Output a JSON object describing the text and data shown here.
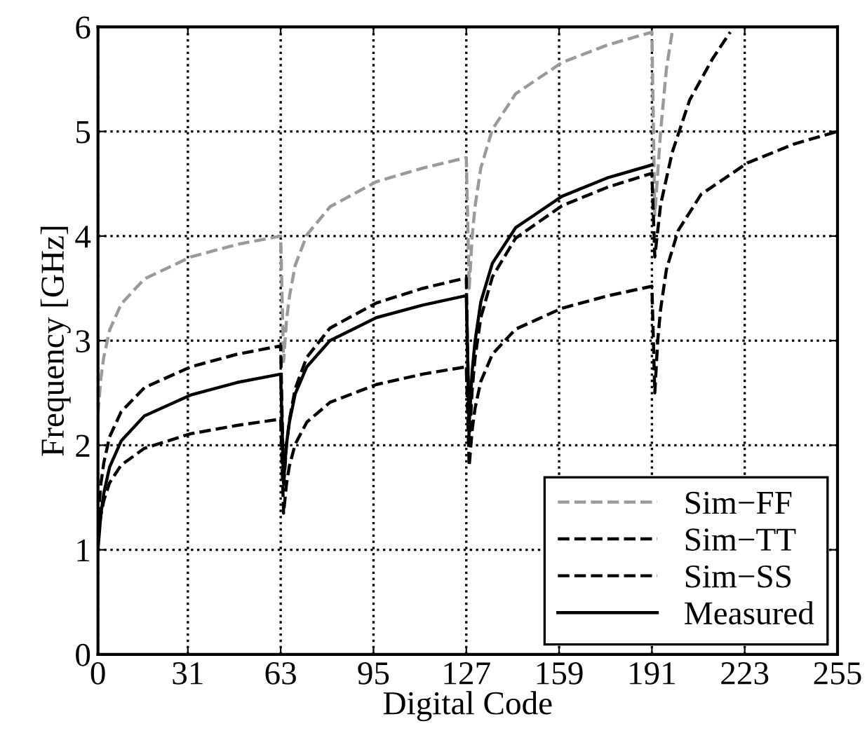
{
  "chart_data": {
    "type": "line",
    "xlabel": "Digital Code",
    "ylabel": "Frequency [GHz]",
    "xlim": [
      0,
      255
    ],
    "xticks": [
      0,
      31,
      63,
      95,
      127,
      159,
      191,
      223,
      255
    ],
    "ylim": [
      0,
      6
    ],
    "yticks": [
      0,
      1,
      2,
      3,
      4,
      5,
      6
    ],
    "grid": true,
    "legend": "bottom right",
    "marker": "none",
    "series": [
      {
        "name": "Sim−FF",
        "color": "#9a9a9a",
        "line_style": "dashed",
        "x": [
          0,
          1,
          2,
          4,
          8,
          16,
          32,
          48,
          63,
          64,
          65,
          66,
          68,
          72,
          80,
          96,
          112,
          127,
          128,
          129,
          130,
          132,
          136,
          144,
          160,
          176,
          191,
          192,
          194,
          196,
          198
        ],
        "values": [
          2.3,
          2.64,
          2.84,
          3.1,
          3.35,
          3.59,
          3.8,
          3.92,
          4.0,
          2.8,
          3.19,
          3.42,
          3.72,
          4.01,
          4.28,
          4.52,
          4.65,
          4.75,
          3.5,
          3.99,
          4.28,
          4.65,
          5.02,
          5.36,
          5.66,
          5.83,
          5.95,
          4.2,
          5.0,
          5.6,
          5.95
        ]
      },
      {
        "name": "Sim−TT",
        "color": "#000000",
        "line_style": "dashed",
        "x": [
          0,
          1,
          2,
          4,
          8,
          16,
          32,
          48,
          63,
          64,
          65,
          66,
          68,
          72,
          80,
          96,
          112,
          127,
          128,
          129,
          130,
          132,
          136,
          144,
          160,
          176,
          191,
          192,
          194,
          198,
          204,
          212,
          218
        ],
        "values": [
          1.3,
          1.63,
          1.83,
          2.08,
          2.32,
          2.55,
          2.75,
          2.87,
          2.95,
          1.6,
          2.0,
          2.24,
          2.54,
          2.84,
          3.12,
          3.36,
          3.5,
          3.6,
          2.0,
          2.52,
          2.83,
          3.22,
          3.61,
          3.98,
          4.29,
          4.47,
          4.6,
          3.8,
          4.3,
          4.8,
          5.3,
          5.7,
          5.95
        ]
      },
      {
        "name": "Sim−SS",
        "color": "#000000",
        "line_style": "dashed",
        "x": [
          0,
          1,
          2,
          4,
          8,
          16,
          32,
          48,
          63,
          64,
          65,
          66,
          68,
          72,
          80,
          96,
          112,
          127,
          128,
          129,
          130,
          132,
          136,
          144,
          160,
          176,
          191,
          192,
          193,
          194,
          196,
          200,
          208,
          224,
          240,
          255
        ],
        "values": [
          1.1,
          1.33,
          1.47,
          1.64,
          1.81,
          1.97,
          2.11,
          2.19,
          2.25,
          1.35,
          1.63,
          1.8,
          2.01,
          2.22,
          2.41,
          2.58,
          2.68,
          2.75,
          1.8,
          2.14,
          2.35,
          2.61,
          2.87,
          3.11,
          3.31,
          3.43,
          3.52,
          2.5,
          3.0,
          3.3,
          3.68,
          4.05,
          4.4,
          4.7,
          4.88,
          5.0
        ]
      },
      {
        "name": "Measured",
        "color": "#000000",
        "line_style": "solid",
        "x": [
          0,
          1,
          2,
          4,
          8,
          16,
          32,
          48,
          63,
          64,
          65,
          66,
          68,
          72,
          80,
          96,
          112,
          127,
          128,
          129,
          130,
          132,
          136,
          144,
          160,
          176,
          191
        ],
        "values": [
          1.0,
          1.34,
          1.54,
          1.79,
          2.04,
          2.28,
          2.48,
          2.6,
          2.68,
          1.65,
          2.01,
          2.22,
          2.49,
          2.75,
          3.0,
          3.22,
          3.34,
          3.43,
          2.2,
          2.7,
          2.99,
          3.37,
          3.74,
          4.08,
          4.38,
          4.56,
          4.68
        ]
      }
    ]
  }
}
